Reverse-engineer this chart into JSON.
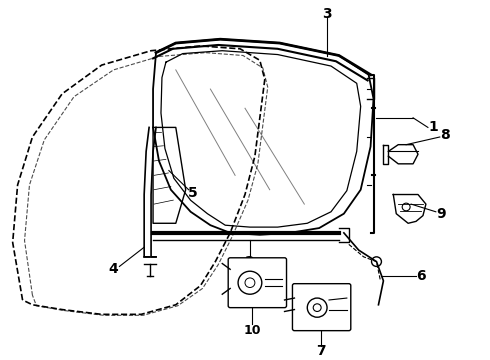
{
  "background_color": "#ffffff",
  "line_color": "#000000",
  "label_color": "#000000",
  "fig_width": 4.9,
  "fig_height": 3.6,
  "dpi": 100,
  "label_fontsize": 10,
  "label_fontweight": "bold"
}
